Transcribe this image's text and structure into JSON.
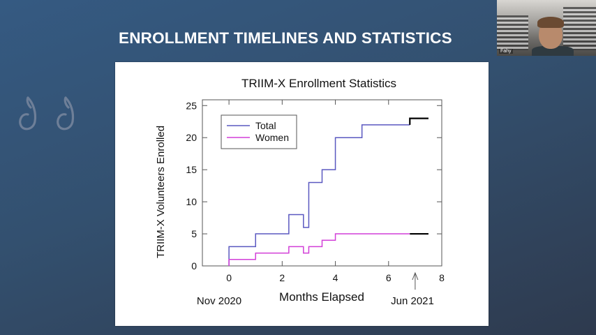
{
  "slide": {
    "title": "ENROLLMENT TIMELINES AND STATISTICS"
  },
  "webcam": {
    "participant_name": "Fahy"
  },
  "decoration": {
    "icon": "quote-marks-icon"
  },
  "chart_data": {
    "type": "line",
    "step": true,
    "title": "TRIIM-X Enrollment Statistics",
    "xlabel": "Months Elapsed",
    "ylabel": "TRIIM-X Volunteers Enrolled",
    "xlim": [
      -1,
      8
    ],
    "ylim": [
      0,
      25.9
    ],
    "x_ticks": [
      0,
      2,
      4,
      6,
      8
    ],
    "x_tick_labels": [
      "0",
      "2",
      "4",
      "6",
      "8"
    ],
    "y_ticks": [
      0,
      5,
      10,
      15,
      20,
      25
    ],
    "y_tick_labels": [
      "0",
      "5",
      "10",
      "15",
      "20",
      "25"
    ],
    "grid": false,
    "legend_position": "top-left",
    "annotations": {
      "start_label": "Nov 2020",
      "end_label": "Jun 2021",
      "arrow_x": 7
    },
    "series": [
      {
        "name": "Total",
        "color": "#5a58c0",
        "x": [
          0,
          1.0,
          2.25,
          2.8,
          3.0,
          3.5,
          4.0,
          5.0,
          6.8,
          7.5
        ],
        "values": [
          3,
          5,
          8,
          6,
          13,
          15,
          20,
          22,
          23,
          23
        ],
        "projection_from_x": 6.8,
        "projection_color": "#000000"
      },
      {
        "name": "Women",
        "color": "#d23fd8",
        "x": [
          0,
          1.0,
          2.25,
          2.8,
          3.0,
          3.5,
          4.0,
          6.8,
          7.5
        ],
        "values": [
          1,
          2,
          3,
          2,
          3,
          4,
          5,
          5,
          5
        ],
        "projection_from_x": 6.8,
        "projection_color": "#000000"
      }
    ]
  }
}
